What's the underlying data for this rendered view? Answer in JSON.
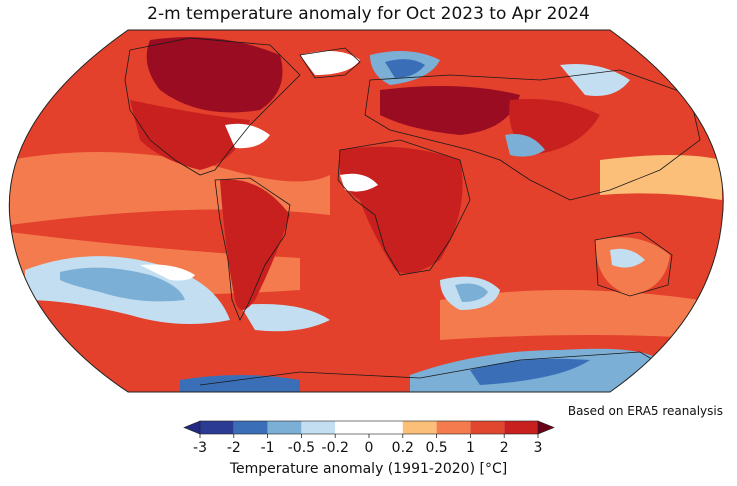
{
  "title": "2-m temperature anomaly for Oct 2023 to Apr 2024",
  "source_note": "Based on ERA5 reanalysis",
  "colorbar": {
    "label": "Temperature anomaly (1991-2020) [°C]",
    "ticks": [
      "-3",
      "-2",
      "-1",
      "-0.5",
      "-0.2",
      "0",
      "0.2",
      "0.5",
      "1",
      "2",
      "3"
    ],
    "colors": [
      "#2b3a92",
      "#3a6fb8",
      "#7bafd6",
      "#c3def0",
      "#ffffff",
      "#ffffff",
      "#fbbf7a",
      "#f47b4d",
      "#e1462f",
      "#c8201f",
      "#8d0a26"
    ],
    "extend_low_color": "#1f2a80",
    "extend_high_color": "#6b0019"
  },
  "map": {
    "projection": "Robinson",
    "ocean_base_color": "#e3412c",
    "regions": [
      {
        "name": "arctic-canada",
        "color": "#9a0c22"
      },
      {
        "name": "warm-pacific-band",
        "color": "#f47b4d"
      },
      {
        "name": "cool-southern-pacific",
        "color": "#c3def0"
      },
      {
        "name": "cool-south-atlantic",
        "color": "#7bafd6"
      },
      {
        "name": "cool-antarctic-coast",
        "color": "#3a6fb8"
      },
      {
        "name": "warm-north-africa",
        "color": "#c8201f"
      }
    ]
  }
}
